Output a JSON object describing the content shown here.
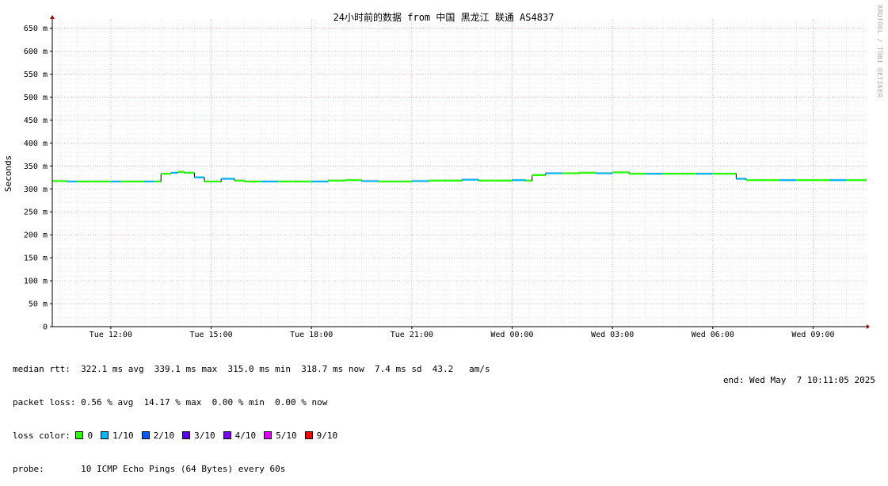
{
  "chart_data": {
    "type": "line",
    "title": "24小时前的数据 from 中国 黑龙江 联通 AS4837",
    "ylabel": "Seconds",
    "ylim": [
      0,
      670
    ],
    "y_ticks": [
      {
        "v": 0,
        "label": "0"
      },
      {
        "v": 50,
        "label": "50 m"
      },
      {
        "v": 100,
        "label": "100 m"
      },
      {
        "v": 150,
        "label": "150 m"
      },
      {
        "v": 200,
        "label": "200 m"
      },
      {
        "v": 250,
        "label": "250 m"
      },
      {
        "v": 300,
        "label": "300 m"
      },
      {
        "v": 350,
        "label": "350 m"
      },
      {
        "v": 400,
        "label": "400 m"
      },
      {
        "v": 450,
        "label": "450 m"
      },
      {
        "v": 500,
        "label": "500 m"
      },
      {
        "v": 550,
        "label": "550 m"
      },
      {
        "v": 600,
        "label": "600 m"
      },
      {
        "v": 650,
        "label": "650 m"
      }
    ],
    "xlim": [
      10.25,
      34.6
    ],
    "x_ticks": [
      {
        "v": 12,
        "label": "Tue 12:00"
      },
      {
        "v": 15,
        "label": "Tue 15:00"
      },
      {
        "v": 18,
        "label": "Tue 18:00"
      },
      {
        "v": 21,
        "label": "Tue 21:00"
      },
      {
        "v": 24,
        "label": "Wed 00:00"
      },
      {
        "v": 27,
        "label": "Wed 03:00"
      },
      {
        "v": 30,
        "label": "Wed 06:00"
      },
      {
        "v": 33,
        "label": "Wed 09:00"
      }
    ],
    "grid": true,
    "series": [
      {
        "name": "median rtt",
        "x": [
          10.25,
          10.7,
          11.0,
          11.5,
          12.0,
          12.3,
          12.5,
          13.0,
          13.3,
          13.5,
          13.8,
          14.0,
          14.2,
          14.5,
          14.8,
          15.0,
          15.3,
          15.7,
          16.0,
          16.5,
          17.0,
          17.5,
          18.0,
          18.5,
          19.0,
          19.5,
          20.0,
          20.5,
          21.0,
          21.5,
          22.0,
          22.5,
          23.0,
          23.5,
          24.0,
          24.4,
          24.6,
          25.0,
          25.5,
          26.0,
          26.5,
          27.0,
          27.5,
          28.0,
          28.5,
          29.0,
          29.5,
          30.0,
          30.5,
          30.7,
          31.0,
          31.5,
          32.0,
          32.5,
          33.0,
          33.5,
          34.0,
          34.6
        ],
        "values": [
          317,
          316,
          316,
          316,
          316,
          316,
          316,
          316,
          316,
          333,
          335,
          337,
          335,
          325,
          316,
          316,
          322,
          318,
          316,
          316,
          316,
          316,
          316,
          318,
          319,
          317,
          316,
          316,
          317,
          318,
          318,
          320,
          318,
          318,
          319,
          318,
          330,
          334,
          334,
          335,
          334,
          336,
          333,
          333,
          333,
          333,
          333,
          333,
          333,
          322,
          319,
          319,
          319,
          319,
          319,
          319,
          319,
          319
        ]
      }
    ],
    "legend_position": "bottom-left"
  },
  "legend": {
    "median_rtt": "median rtt:  322.1 ms avg  339.1 ms max  315.0 ms min  318.7 ms now  7.4 ms sd  43.2   am/s",
    "packet_loss": "packet loss: 0.56 % avg  14.17 % max  0.00 % min  0.00 % now",
    "loss_color_label": "loss color: ",
    "loss_colors": [
      {
        "label": "0",
        "color": "#26ff00"
      },
      {
        "label": "1/10",
        "color": "#00b8ff"
      },
      {
        "label": "2/10",
        "color": "#0059ff"
      },
      {
        "label": "3/10",
        "color": "#5e00ff"
      },
      {
        "label": "4/10",
        "color": "#7e00ff"
      },
      {
        "label": "5/10",
        "color": "#dd00ff"
      },
      {
        "label": "9/10",
        "color": "#ff0000"
      }
    ],
    "probe": "probe:       10 ICMP Echo Pings (64 Bytes) every 60s",
    "end": "end: Wed May  7 10:11:05 2025"
  },
  "watermark": "RRDTOOL / TOBI OETIKER"
}
